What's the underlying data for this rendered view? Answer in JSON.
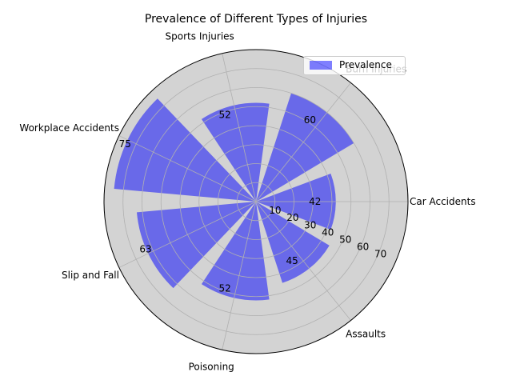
{
  "chart_data": {
    "type": "bar",
    "subtype": "polar",
    "title": "Prevalence of Different Types of Injuries",
    "categories": [
      "Car Accidents",
      "Burn Injuries",
      "Sports Injuries",
      "Workplace Accidents",
      "Slip and Fall",
      "Poisoning",
      "Assaults"
    ],
    "series": [
      {
        "name": "Prevalence",
        "values": [
          42,
          60,
          52,
          75,
          63,
          52,
          45
        ],
        "color": "#0000ff",
        "alpha": 0.5
      }
    ],
    "radial_ticks": [
      "10",
      "20",
      "30",
      "40",
      "50",
      "60",
      "70"
    ],
    "rlim": [
      0,
      80
    ],
    "grid": true,
    "legend_position": "top-right",
    "background_color": "#d3d3d3"
  }
}
